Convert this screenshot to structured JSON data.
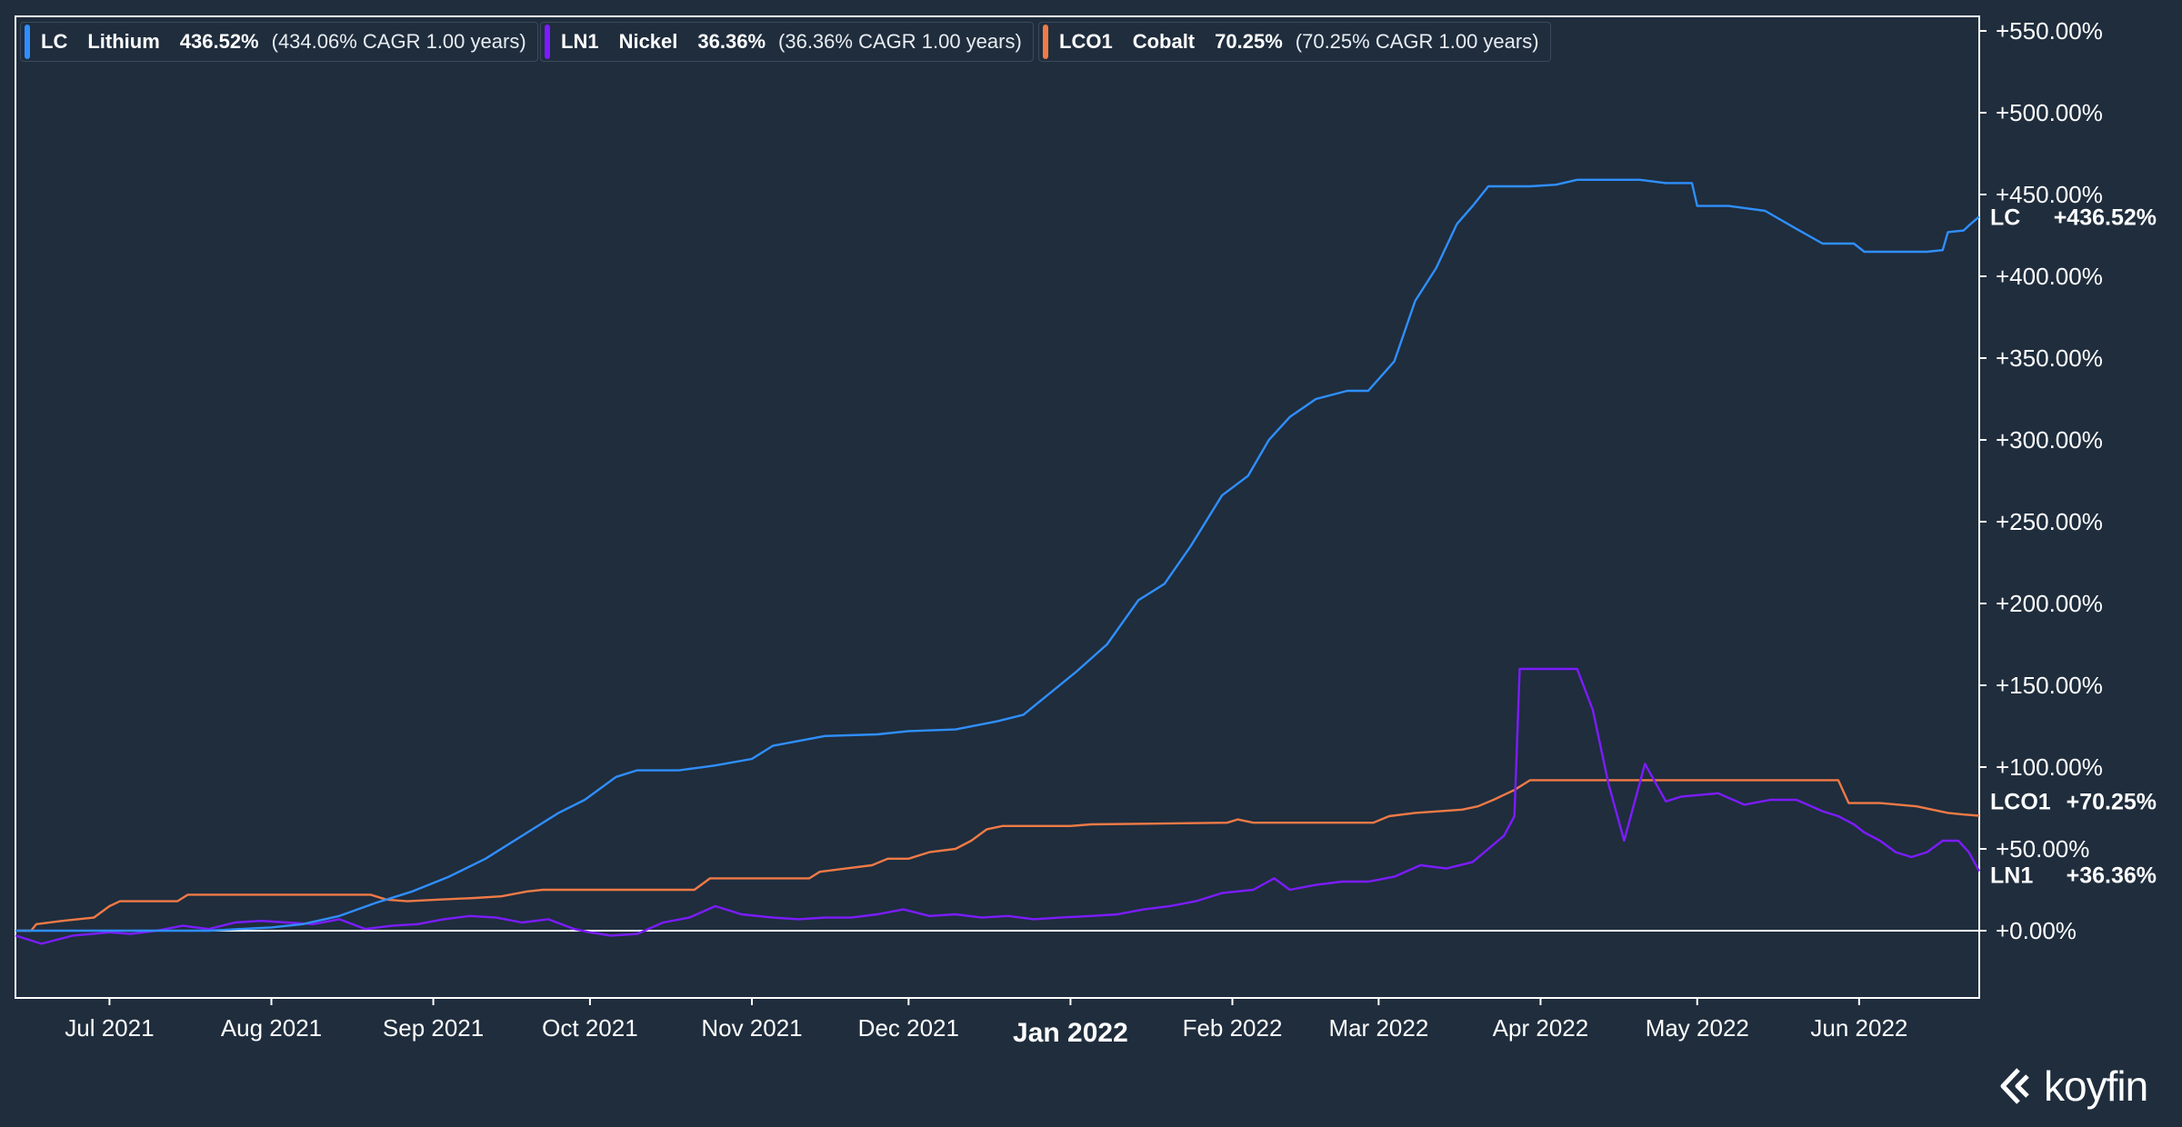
{
  "legend": [
    {
      "symbol": "LC",
      "name": "Lithium",
      "return": "436.52%",
      "cagr": "(434.06% CAGR 1.00 years)",
      "color": "#2f8fff"
    },
    {
      "symbol": "LN1",
      "name": "Nickel",
      "return": "36.36%",
      "cagr": "(36.36% CAGR 1.00 years)",
      "color": "#7c1cff"
    },
    {
      "symbol": "LCO1",
      "name": "Cobalt",
      "return": "70.25%",
      "cagr": "(70.25% CAGR 1.00 years)",
      "color": "#f07a46"
    }
  ],
  "end_labels": [
    {
      "symbol": "LC",
      "value": "+436.52%",
      "y_value": 436.52
    },
    {
      "symbol": "LCO1",
      "value": "+70.25%",
      "y_value": 70.25
    },
    {
      "symbol": "LN1",
      "value": "+36.36%",
      "y_value": 36.36
    }
  ],
  "brand": {
    "name": "koyfin"
  },
  "chart_data": {
    "type": "line",
    "title": "",
    "xlabel": "",
    "ylabel": "",
    "ylim": [
      -42,
      562
    ],
    "xlim": [
      "2021-06-13",
      "2022-06-24"
    ],
    "y_ticks": [
      0,
      50,
      100,
      150,
      200,
      250,
      300,
      350,
      400,
      450,
      500,
      550
    ],
    "y_tick_labels": [
      "+0.00%",
      "+50.00%",
      "+100.00%",
      "+150.00%",
      "+200.00%",
      "+250.00%",
      "+300.00%",
      "+350.00%",
      "+400.00%",
      "+450.00%",
      "+500.00%",
      "+550.00%"
    ],
    "x_ticks": [
      {
        "date": "2021-07-01",
        "label": "Jul 2021",
        "major": false
      },
      {
        "date": "2021-08-01",
        "label": "Aug 2021",
        "major": false
      },
      {
        "date": "2021-09-01",
        "label": "Sep 2021",
        "major": false
      },
      {
        "date": "2021-10-01",
        "label": "Oct 2021",
        "major": false
      },
      {
        "date": "2021-11-01",
        "label": "Nov 2021",
        "major": false
      },
      {
        "date": "2021-12-01",
        "label": "Dec 2021",
        "major": false
      },
      {
        "date": "2022-01-01",
        "label": "Jan 2022",
        "major": true
      },
      {
        "date": "2022-02-01",
        "label": "Feb 2022",
        "major": false
      },
      {
        "date": "2022-03-01",
        "label": "Mar 2022",
        "major": false
      },
      {
        "date": "2022-04-01",
        "label": "Apr 2022",
        "major": false
      },
      {
        "date": "2022-05-01",
        "label": "May 2022",
        "major": false
      },
      {
        "date": "2022-06-01",
        "label": "Jun 2022",
        "major": false
      }
    ],
    "zero_line": true,
    "grid": false,
    "legend_position": "top-left",
    "series": [
      {
        "name": "LC Lithium",
        "color": "#2f8fff",
        "points": [
          [
            "2021-06-13",
            0
          ],
          [
            "2021-07-01",
            0
          ],
          [
            "2021-07-20",
            0
          ],
          [
            "2021-08-01",
            2
          ],
          [
            "2021-08-07",
            4
          ],
          [
            "2021-08-14",
            9
          ],
          [
            "2021-08-21",
            17
          ],
          [
            "2021-08-28",
            24
          ],
          [
            "2021-09-04",
            33
          ],
          [
            "2021-09-11",
            44
          ],
          [
            "2021-09-18",
            58
          ],
          [
            "2021-09-25",
            72
          ],
          [
            "2021-09-30",
            80
          ],
          [
            "2021-10-06",
            94
          ],
          [
            "2021-10-10",
            98
          ],
          [
            "2021-10-18",
            98
          ],
          [
            "2021-10-25",
            101
          ],
          [
            "2021-11-01",
            105
          ],
          [
            "2021-11-05",
            113
          ],
          [
            "2021-11-10",
            116
          ],
          [
            "2021-11-15",
            119
          ],
          [
            "2021-11-25",
            120
          ],
          [
            "2021-12-01",
            122
          ],
          [
            "2021-12-10",
            123
          ],
          [
            "2021-12-18",
            128
          ],
          [
            "2021-12-23",
            132
          ],
          [
            "2021-12-28",
            145
          ],
          [
            "2022-01-02",
            158
          ],
          [
            "2022-01-08",
            175
          ],
          [
            "2022-01-14",
            202
          ],
          [
            "2022-01-19",
            212
          ],
          [
            "2022-01-24",
            235
          ],
          [
            "2022-01-30",
            266
          ],
          [
            "2022-02-04",
            278
          ],
          [
            "2022-02-08",
            300
          ],
          [
            "2022-02-12",
            314
          ],
          [
            "2022-02-17",
            325
          ],
          [
            "2022-02-23",
            330
          ],
          [
            "2022-02-27",
            330
          ],
          [
            "2022-03-04",
            348
          ],
          [
            "2022-03-08",
            385
          ],
          [
            "2022-03-12",
            405
          ],
          [
            "2022-03-16",
            432
          ],
          [
            "2022-03-19",
            443
          ],
          [
            "2022-03-22",
            455
          ],
          [
            "2022-03-30",
            455
          ],
          [
            "2022-04-04",
            456
          ],
          [
            "2022-04-08",
            459
          ],
          [
            "2022-04-20",
            459
          ],
          [
            "2022-04-25",
            457
          ],
          [
            "2022-04-30",
            457
          ],
          [
            "2022-05-01",
            443
          ],
          [
            "2022-05-07",
            443
          ],
          [
            "2022-05-14",
            440
          ],
          [
            "2022-05-20",
            429
          ],
          [
            "2022-05-25",
            420
          ],
          [
            "2022-05-31",
            420
          ],
          [
            "2022-06-02",
            415
          ],
          [
            "2022-06-09",
            415
          ],
          [
            "2022-06-14",
            415
          ],
          [
            "2022-06-17",
            416
          ],
          [
            "2022-06-18",
            427
          ],
          [
            "2022-06-21",
            428
          ],
          [
            "2022-06-22",
            431
          ],
          [
            "2022-06-24",
            436.52
          ]
        ]
      },
      {
        "name": "LN1 Nickel",
        "color": "#7c1cff",
        "points": [
          [
            "2021-06-13",
            -3
          ],
          [
            "2021-06-18",
            -8
          ],
          [
            "2021-06-24",
            -3
          ],
          [
            "2021-07-01",
            -1
          ],
          [
            "2021-07-05",
            -2
          ],
          [
            "2021-07-10",
            0
          ],
          [
            "2021-07-15",
            3
          ],
          [
            "2021-07-20",
            1
          ],
          [
            "2021-07-25",
            5
          ],
          [
            "2021-07-30",
            6
          ],
          [
            "2021-08-04",
            5
          ],
          [
            "2021-08-09",
            4
          ],
          [
            "2021-08-14",
            7
          ],
          [
            "2021-08-19",
            1
          ],
          [
            "2021-08-24",
            3
          ],
          [
            "2021-08-29",
            4
          ],
          [
            "2021-09-03",
            7
          ],
          [
            "2021-09-08",
            9
          ],
          [
            "2021-09-13",
            8
          ],
          [
            "2021-09-18",
            5
          ],
          [
            "2021-09-23",
            7
          ],
          [
            "2021-09-28",
            1
          ],
          [
            "2021-10-01",
            -1
          ],
          [
            "2021-10-05",
            -3
          ],
          [
            "2021-10-10",
            -2
          ],
          [
            "2021-10-15",
            5
          ],
          [
            "2021-10-20",
            8
          ],
          [
            "2021-10-25",
            15
          ],
          [
            "2021-10-30",
            10
          ],
          [
            "2021-11-05",
            8
          ],
          [
            "2021-11-10",
            7
          ],
          [
            "2021-11-15",
            8
          ],
          [
            "2021-11-20",
            8
          ],
          [
            "2021-11-25",
            10
          ],
          [
            "2021-11-30",
            13
          ],
          [
            "2021-12-05",
            9
          ],
          [
            "2021-12-10",
            10
          ],
          [
            "2021-12-15",
            8
          ],
          [
            "2021-12-20",
            9
          ],
          [
            "2021-12-25",
            7
          ],
          [
            "2021-12-30",
            8
          ],
          [
            "2022-01-05",
            9
          ],
          [
            "2022-01-10",
            10
          ],
          [
            "2022-01-15",
            13
          ],
          [
            "2022-01-20",
            15
          ],
          [
            "2022-01-25",
            18
          ],
          [
            "2022-01-30",
            23
          ],
          [
            "2022-02-05",
            25
          ],
          [
            "2022-02-09",
            32
          ],
          [
            "2022-02-12",
            25
          ],
          [
            "2022-02-17",
            28
          ],
          [
            "2022-02-22",
            30
          ],
          [
            "2022-02-27",
            30
          ],
          [
            "2022-03-04",
            33
          ],
          [
            "2022-03-09",
            40
          ],
          [
            "2022-03-14",
            38
          ],
          [
            "2022-03-19",
            42
          ],
          [
            "2022-03-22",
            50
          ],
          [
            "2022-03-25",
            58
          ],
          [
            "2022-03-27",
            70
          ],
          [
            "2022-03-28",
            160
          ],
          [
            "2022-04-05",
            160
          ],
          [
            "2022-04-08",
            160
          ],
          [
            "2022-04-11",
            135
          ],
          [
            "2022-04-14",
            90
          ],
          [
            "2022-04-17",
            55
          ],
          [
            "2022-04-21",
            102
          ],
          [
            "2022-04-25",
            79
          ],
          [
            "2022-04-28",
            82
          ],
          [
            "2022-05-05",
            84
          ],
          [
            "2022-05-10",
            77
          ],
          [
            "2022-05-15",
            80
          ],
          [
            "2022-05-20",
            80
          ],
          [
            "2022-05-25",
            73
          ],
          [
            "2022-05-28",
            70
          ],
          [
            "2022-05-31",
            65
          ],
          [
            "2022-06-02",
            60
          ],
          [
            "2022-06-05",
            55
          ],
          [
            "2022-06-08",
            48
          ],
          [
            "2022-06-11",
            45
          ],
          [
            "2022-06-14",
            48
          ],
          [
            "2022-06-17",
            55
          ],
          [
            "2022-06-20",
            55
          ],
          [
            "2022-06-22",
            48
          ],
          [
            "2022-06-24",
            36.36
          ]
        ]
      },
      {
        "name": "LCO1 Cobalt",
        "color": "#f07a46",
        "points": [
          [
            "2021-06-13",
            0
          ],
          [
            "2021-06-16",
            0
          ],
          [
            "2021-06-17",
            4
          ],
          [
            "2021-06-22",
            6
          ],
          [
            "2021-06-28",
            8
          ],
          [
            "2021-07-01",
            15
          ],
          [
            "2021-07-03",
            18
          ],
          [
            "2021-07-14",
            18
          ],
          [
            "2021-07-16",
            22
          ],
          [
            "2021-08-01",
            22
          ],
          [
            "2021-08-20",
            22
          ],
          [
            "2021-08-23",
            19
          ],
          [
            "2021-08-27",
            18
          ],
          [
            "2021-09-02",
            19
          ],
          [
            "2021-09-09",
            20
          ],
          [
            "2021-09-14",
            21
          ],
          [
            "2021-09-19",
            24
          ],
          [
            "2021-09-22",
            25
          ],
          [
            "2021-10-01",
            25
          ],
          [
            "2021-10-21",
            25
          ],
          [
            "2021-10-24",
            32
          ],
          [
            "2021-11-01",
            32
          ],
          [
            "2021-11-12",
            32
          ],
          [
            "2021-11-14",
            36
          ],
          [
            "2021-11-19",
            38
          ],
          [
            "2021-11-24",
            40
          ],
          [
            "2021-11-27",
            44
          ],
          [
            "2021-12-01",
            44
          ],
          [
            "2021-12-05",
            48
          ],
          [
            "2021-12-10",
            50
          ],
          [
            "2021-12-13",
            55
          ],
          [
            "2021-12-16",
            62
          ],
          [
            "2021-12-19",
            64
          ],
          [
            "2021-12-26",
            64
          ],
          [
            "2022-01-01",
            64
          ],
          [
            "2022-01-05",
            65
          ],
          [
            "2022-01-31",
            66
          ],
          [
            "2022-02-02",
            68
          ],
          [
            "2022-02-05",
            66
          ],
          [
            "2022-02-28",
            66
          ],
          [
            "2022-03-03",
            70
          ],
          [
            "2022-03-08",
            72
          ],
          [
            "2022-03-17",
            74
          ],
          [
            "2022-03-20",
            76
          ],
          [
            "2022-03-23",
            80
          ],
          [
            "2022-03-27",
            86
          ],
          [
            "2022-03-30",
            92
          ],
          [
            "2022-04-10",
            92
          ],
          [
            "2022-05-01",
            92
          ],
          [
            "2022-05-20",
            92
          ],
          [
            "2022-05-28",
            92
          ],
          [
            "2022-05-30",
            78
          ],
          [
            "2022-06-05",
            78
          ],
          [
            "2022-06-12",
            76
          ],
          [
            "2022-06-18",
            72
          ],
          [
            "2022-06-21",
            71
          ],
          [
            "2022-06-24",
            70.25
          ]
        ]
      }
    ]
  }
}
